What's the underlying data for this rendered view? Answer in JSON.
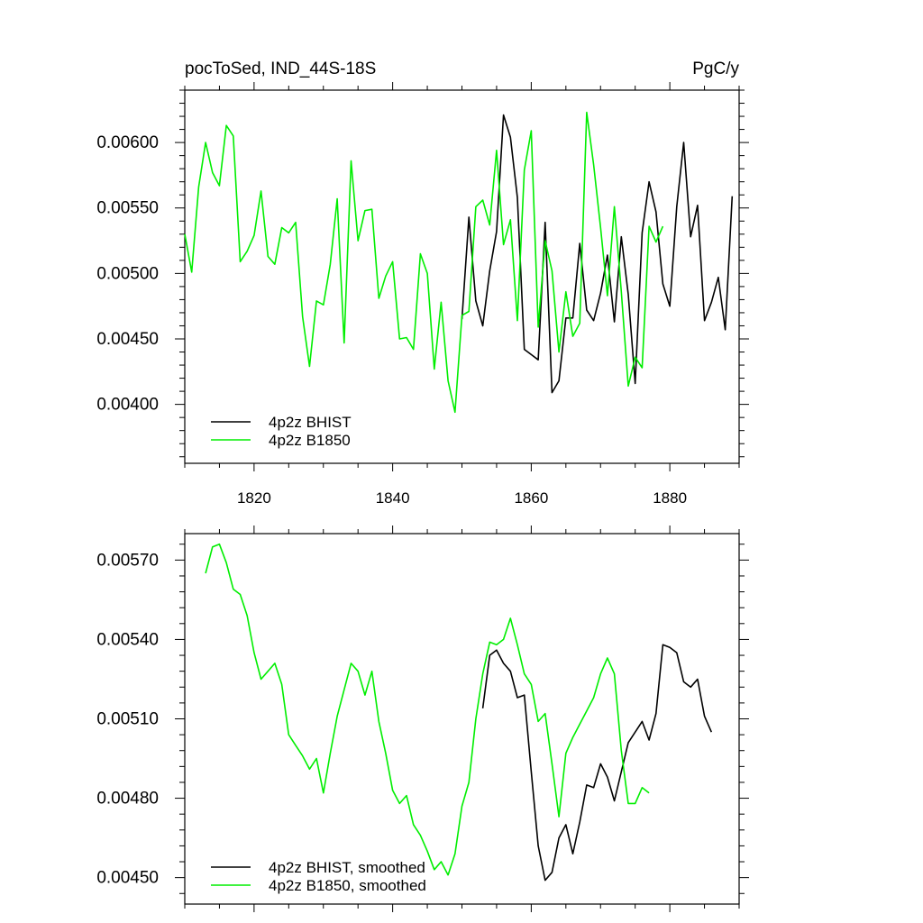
{
  "colors": {
    "bhist": "#000000",
    "b1850": "#00ee00",
    "frame": "#000000"
  },
  "chart_data": [
    {
      "type": "line",
      "title": "pocToSed, IND_44S-18S",
      "units": "PgC/y",
      "xlim": [
        1810,
        1890
      ],
      "ylim": [
        0.00355,
        0.0064
      ],
      "x_ticks": [
        1820,
        1840,
        1860,
        1880
      ],
      "x_tick_labels": [
        "1820",
        "1840",
        "1860",
        "1880"
      ],
      "y_ticks": [
        0.004,
        0.0045,
        0.005,
        0.0055,
        0.006
      ],
      "y_tick_labels": [
        "0.00400",
        "0.00450",
        "0.00500",
        "0.00550",
        "0.00600"
      ],
      "legend": "bottom-left",
      "series": [
        {
          "name": "4p2z BHIST",
          "x_start": 1850,
          "values": [
            0.00465,
            0.00543,
            0.00479,
            0.0046,
            0.00502,
            0.00532,
            0.00621,
            0.00604,
            0.00558,
            0.00442,
            0.00438,
            0.00434,
            0.00539,
            0.00409,
            0.00418,
            0.00466,
            0.00466,
            0.00523,
            0.00472,
            0.00464,
            0.00485,
            0.00514,
            0.00463,
            0.00528,
            0.00484,
            0.00416,
            0.00531,
            0.0057,
            0.00547,
            0.00492,
            0.00475,
            0.00551,
            0.006,
            0.00528,
            0.00552,
            0.00464,
            0.00478,
            0.00497,
            0.00457,
            0.00559
          ]
        },
        {
          "name": "4p2z B1850",
          "x_start": 1810,
          "values": [
            0.0053,
            0.00501,
            0.00566,
            0.006,
            0.00577,
            0.00567,
            0.00613,
            0.00605,
            0.00509,
            0.00517,
            0.00529,
            0.00563,
            0.00513,
            0.00507,
            0.00535,
            0.00531,
            0.00539,
            0.00467,
            0.00429,
            0.00479,
            0.00476,
            0.00507,
            0.00557,
            0.00447,
            0.00586,
            0.00525,
            0.00548,
            0.00549,
            0.00481,
            0.00498,
            0.00509,
            0.0045,
            0.00451,
            0.00442,
            0.00515,
            0.005,
            0.00427,
            0.00478,
            0.00418,
            0.00394,
            0.00468,
            0.00471,
            0.00551,
            0.00556,
            0.00537,
            0.00594,
            0.00522,
            0.00541,
            0.00464,
            0.00579,
            0.00609,
            0.00459,
            0.00525,
            0.00502,
            0.0044,
            0.00486,
            0.00452,
            0.00462,
            0.00623,
            0.00583,
            0.00535,
            0.00483,
            0.00551,
            0.00486,
            0.00414,
            0.00436,
            0.00428,
            0.00536,
            0.00524,
            0.00536
          ]
        }
      ]
    },
    {
      "type": "line",
      "xlim": [
        1810,
        1890
      ],
      "ylim": [
        0.0044,
        0.0058
      ],
      "x_ticks": [
        1820,
        1840,
        1860,
        1880
      ],
      "y_ticks": [
        0.0045,
        0.0048,
        0.0051,
        0.0054,
        0.0057
      ],
      "y_tick_labels": [
        "0.00450",
        "0.00480",
        "0.00510",
        "0.00540",
        "0.00570"
      ],
      "legend": "bottom-left",
      "series": [
        {
          "name": "4p2z BHIST, smoothed",
          "x_start": 1853,
          "values": [
            0.00514,
            0.00534,
            0.00536,
            0.00531,
            0.00528,
            0.00518,
            0.00519,
            0.0049,
            0.00462,
            0.00449,
            0.00452,
            0.00465,
            0.0047,
            0.00459,
            0.00471,
            0.00485,
            0.00484,
            0.00493,
            0.00488,
            0.00479,
            0.0049,
            0.00501,
            0.00505,
            0.00509,
            0.00502,
            0.00512,
            0.00538,
            0.00537,
            0.00535,
            0.00524,
            0.00522,
            0.00525,
            0.00511,
            0.00505
          ]
        },
        {
          "name": "4p2z B1850, smoothed",
          "x_start": 1813,
          "values": [
            0.00565,
            0.00575,
            0.00576,
            0.00569,
            0.00559,
            0.00557,
            0.00549,
            0.00535,
            0.00525,
            0.00528,
            0.00531,
            0.00523,
            0.00504,
            0.005,
            0.00496,
            0.00491,
            0.00495,
            0.00482,
            0.00497,
            0.00511,
            0.00521,
            0.00531,
            0.00528,
            0.00519,
            0.00528,
            0.00509,
            0.00497,
            0.00483,
            0.00478,
            0.00481,
            0.0047,
            0.00466,
            0.0046,
            0.00453,
            0.00456,
            0.00451,
            0.00459,
            0.00477,
            0.00486,
            0.0051,
            0.00527,
            0.00539,
            0.00538,
            0.0054,
            0.00548,
            0.00538,
            0.00527,
            0.00523,
            0.00509,
            0.00512,
            0.00493,
            0.00473,
            0.00497,
            0.00503,
            0.00508,
            0.00513,
            0.00518,
            0.00527,
            0.00533,
            0.00527,
            0.00498,
            0.00478,
            0.00478,
            0.00484,
            0.00482
          ]
        }
      ]
    }
  ]
}
